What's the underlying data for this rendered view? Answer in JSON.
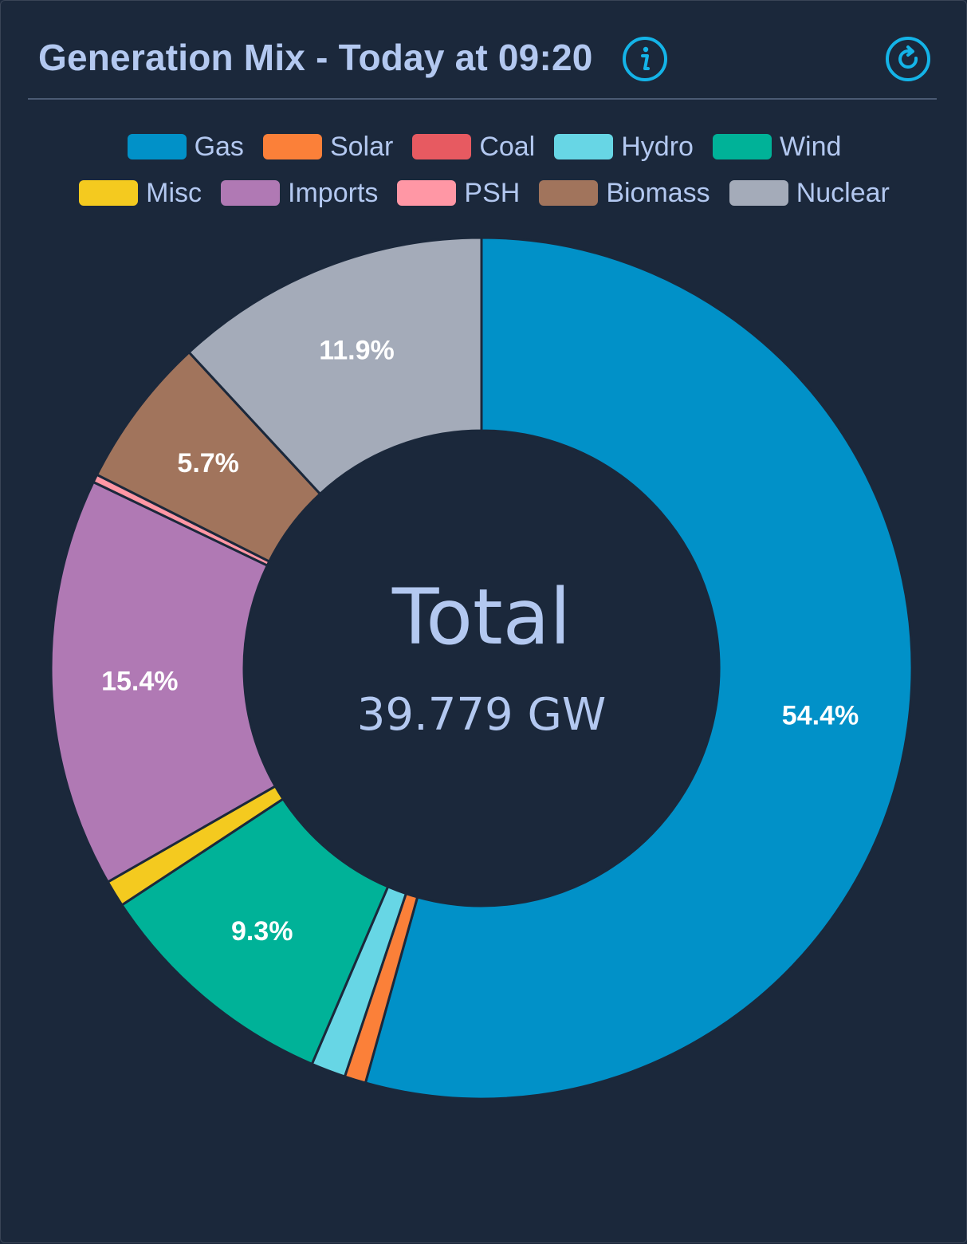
{
  "header": {
    "title": "Generation Mix - Today at 09:20",
    "info_icon": "info-icon",
    "refresh_icon": "refresh-icon",
    "accent": "#14b4e8"
  },
  "chart_data": {
    "type": "pie",
    "donut": true,
    "legend_position": "top",
    "center_title": "Total",
    "center_value": "39.779 GW",
    "slices": [
      {
        "name": "Gas",
        "value": 54.4,
        "label": "54.4%",
        "color": "#0191c8"
      },
      {
        "name": "Solar",
        "value": 0.8,
        "label": "",
        "color": "#fb8039"
      },
      {
        "name": "Coal",
        "value": 0.0,
        "label": "",
        "color": "#e75a61"
      },
      {
        "name": "Hydro",
        "value": 1.3,
        "label": "",
        "color": "#67d6e5"
      },
      {
        "name": "Wind",
        "value": 9.3,
        "label": "9.3%",
        "color": "#00b298"
      },
      {
        "name": "Misc",
        "value": 1.0,
        "label": "",
        "color": "#f4ca1f"
      },
      {
        "name": "Imports",
        "value": 15.4,
        "label": "15.4%",
        "color": "#b079b4"
      },
      {
        "name": "PSH",
        "value": 0.3,
        "label": "",
        "color": "#ff97a5"
      },
      {
        "name": "Biomass",
        "value": 5.7,
        "label": "5.7%",
        "color": "#a1745c"
      },
      {
        "name": "Nuclear",
        "value": 11.9,
        "label": "11.9%",
        "color": "#a4abb9"
      }
    ]
  },
  "legend": {
    "rows": [
      [
        "Gas",
        "Solar",
        "Coal",
        "Hydro",
        "Wind"
      ],
      [
        "Misc",
        "Imports",
        "PSH",
        "Biomass",
        "Nuclear"
      ]
    ]
  }
}
